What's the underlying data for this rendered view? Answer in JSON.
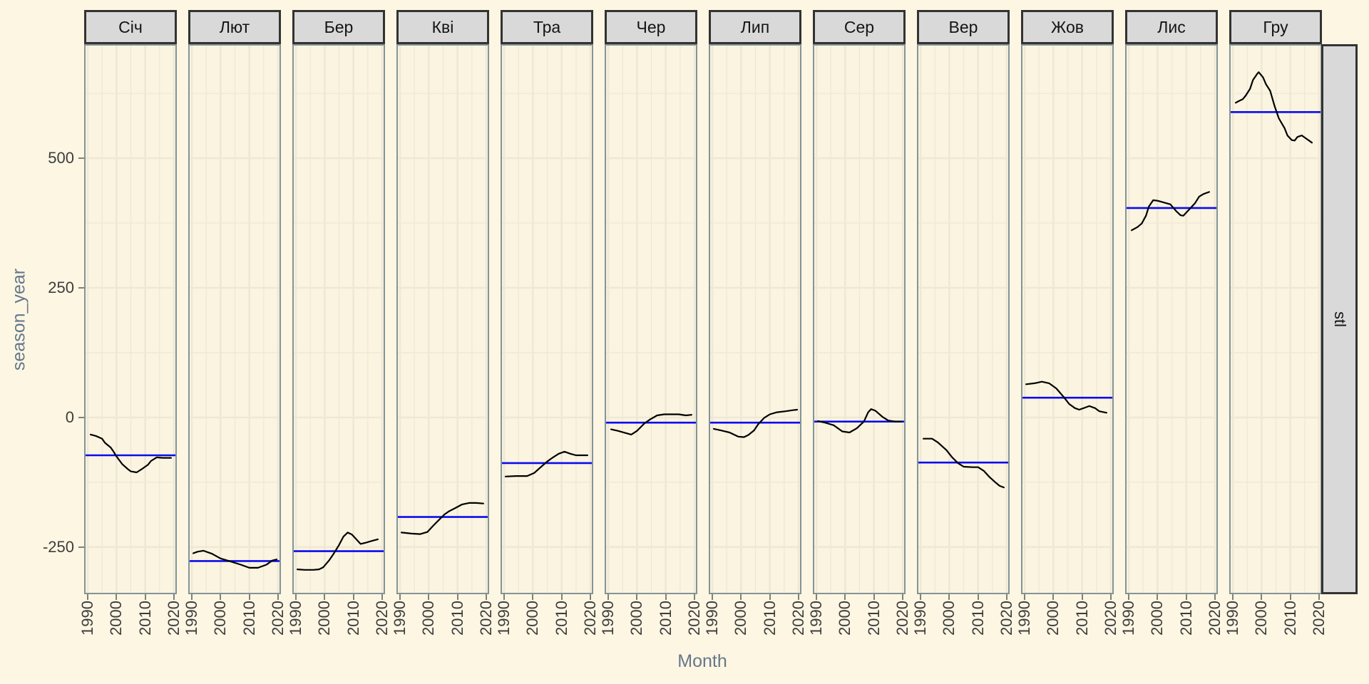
{
  "chart_data": {
    "type": "line",
    "title": "",
    "xlabel": "Month",
    "ylabel": "season_year",
    "right_strip_label": "stl",
    "x_ticks": [
      1990,
      2000,
      2010,
      2020
    ],
    "x_minor_ticks": [
      1995,
      2005,
      2015
    ],
    "y_ticks": [
      -250,
      0,
      250,
      500
    ],
    "y_minor_ticks": [
      -125,
      125,
      375,
      625
    ],
    "xlim": [
      1988.75,
      2021
    ],
    "ylim": [
      -341,
      720
    ],
    "grid": "major and minor, light on cream background",
    "legend": "none",
    "colors": {
      "background": "#fdf6e3",
      "panel_background": "#fbf4e0",
      "grid": "#eee8d5",
      "panel_border": "#839496",
      "strip_fill": "#d9d9d9",
      "strip_border": "#333333",
      "series_line": "#000000",
      "mean_line": "#0b0bee",
      "axis_title": "#65788a",
      "tick_label": "#3d3d3d"
    },
    "facets": [
      {
        "label": "Січ",
        "mean": -73,
        "series": {
          "x": [
            1991,
            1993,
            1995,
            1996,
            1998,
            1999,
            2000,
            2002,
            2004,
            2005,
            2007,
            2009,
            2011,
            2012,
            2014,
            2016,
            2019
          ],
          "y": [
            -33,
            -36,
            -41,
            -49,
            -58,
            -66,
            -75,
            -90,
            -100,
            -104,
            -106,
            -99,
            -91,
            -84,
            -77,
            -78,
            -78
          ]
        }
      },
      {
        "label": "Лют",
        "mean": -277,
        "series": {
          "x": [
            1990.5,
            1992,
            1994,
            1997,
            2000,
            2003,
            2007,
            2010,
            2013,
            2016,
            2018,
            2019.5
          ],
          "y": [
            -262,
            -259,
            -257,
            -263,
            -272,
            -277,
            -284,
            -290,
            -290,
            -284,
            -276,
            -274
          ]
        }
      },
      {
        "label": "Бер",
        "mean": -258,
        "series": {
          "x": [
            1990.5,
            1993,
            1996,
            1998,
            1999.5,
            2001.5,
            2003,
            2005,
            2006.5,
            2008,
            2009.5,
            2011,
            2012.5,
            2014,
            2016.5,
            2018.5
          ],
          "y": [
            -293,
            -294,
            -294,
            -293,
            -289,
            -276,
            -264,
            -246,
            -230,
            -222,
            -226,
            -235,
            -244,
            -242,
            -238,
            -235
          ]
        }
      },
      {
        "label": "Кві",
        "mean": -192,
        "series": {
          "x": [
            1990.5,
            1994,
            1997,
            1999.5,
            2001.5,
            2004,
            2005.5,
            2007,
            2009.5,
            2011.5,
            2014,
            2016.5,
            2019
          ],
          "y": [
            -222,
            -224,
            -225,
            -221,
            -209,
            -195,
            -187,
            -181,
            -174,
            -168,
            -165,
            -165,
            -166
          ]
        }
      },
      {
        "label": "Тра",
        "mean": -88,
        "series": {
          "x": [
            1990.5,
            1994,
            1998,
            2000.5,
            2002.5,
            2005,
            2007,
            2009,
            2011,
            2013,
            2015,
            2017,
            2019
          ],
          "y": [
            -114,
            -113,
            -113,
            -107,
            -97,
            -85,
            -77,
            -70,
            -66,
            -70,
            -73,
            -73,
            -73
          ]
        }
      },
      {
        "label": "Чер",
        "mean": -10,
        "series": {
          "x": [
            1991,
            1993.5,
            1996,
            1998,
            2000,
            2002.5,
            2004.5,
            2007,
            2009.5,
            2012,
            2014.5,
            2017,
            2019
          ],
          "y": [
            -23,
            -26,
            -30,
            -33,
            -26,
            -12,
            -4,
            4,
            6,
            6,
            6,
            4,
            5
          ]
        }
      },
      {
        "label": "Лип",
        "mean": -10,
        "series": {
          "x": [
            1990.5,
            1993,
            1996,
            1999,
            2001,
            2002.5,
            2004.5,
            2006,
            2008,
            2010,
            2012.5,
            2015.5,
            2018,
            2019.5
          ],
          "y": [
            -22,
            -25,
            -29,
            -37,
            -38,
            -34,
            -25,
            -13,
            -1,
            6,
            10,
            12,
            14,
            15
          ]
        }
      },
      {
        "label": "Сер",
        "mean": -8,
        "series": {
          "x": [
            1990.5,
            1993,
            1996,
            1999,
            2001.5,
            2004,
            2006.5,
            2008,
            2009,
            2010.5,
            2013,
            2015,
            2017.5,
            2019.5
          ],
          "y": [
            -7,
            -10,
            -15,
            -27,
            -29,
            -21,
            -8,
            10,
            16,
            13,
            1,
            -6,
            -8,
            -8
          ]
        }
      },
      {
        "label": "Вер",
        "mean": -87,
        "series": {
          "x": [
            1991,
            1994,
            1996,
            1999,
            2001,
            2003,
            2005,
            2008,
            2010,
            2012,
            2014,
            2016,
            2017.5,
            2019
          ],
          "y": [
            -41,
            -41,
            -48,
            -63,
            -77,
            -88,
            -95,
            -96,
            -96,
            -103,
            -115,
            -125,
            -132,
            -135
          ]
        }
      },
      {
        "label": "Жов",
        "mean": 38,
        "series": {
          "x": [
            1990.5,
            1993.5,
            1996,
            1998.5,
            2001,
            2003.5,
            2005.5,
            2007.5,
            2009,
            2011,
            2012.5,
            2014.5,
            2016,
            2018.5
          ],
          "y": [
            64,
            66,
            69,
            66,
            56,
            40,
            26,
            18,
            15,
            19,
            22,
            18,
            12,
            9
          ]
        }
      },
      {
        "label": "Лис",
        "mean": 404,
        "series": {
          "x": [
            1991,
            1993,
            1994.5,
            1996,
            1997,
            1998.5,
            2000,
            2002,
            2004.5,
            2006.5,
            2008,
            2009,
            2011,
            2013,
            2014.5,
            2016,
            2018
          ],
          "y": [
            361,
            367,
            374,
            389,
            407,
            419,
            418,
            415,
            411,
            398,
            390,
            389,
            401,
            413,
            426,
            431,
            435
          ]
        }
      },
      {
        "label": "Гру",
        "mean": 589,
        "series": {
          "x": [
            1991,
            1992,
            1993.5,
            1994.5,
            1996,
            1997,
            1998.5,
            1999,
            2000.5,
            2001.5,
            2003,
            2004.5,
            2006,
            2008,
            2009,
            2010.5,
            2011.5,
            2012.5,
            2014,
            2015,
            2016.5,
            2017.5
          ],
          "y": [
            607,
            610,
            614,
            621,
            634,
            651,
            663,
            666,
            656,
            643,
            630,
            601,
            577,
            558,
            544,
            535,
            534,
            541,
            544,
            540,
            534,
            530
          ]
        }
      }
    ]
  }
}
